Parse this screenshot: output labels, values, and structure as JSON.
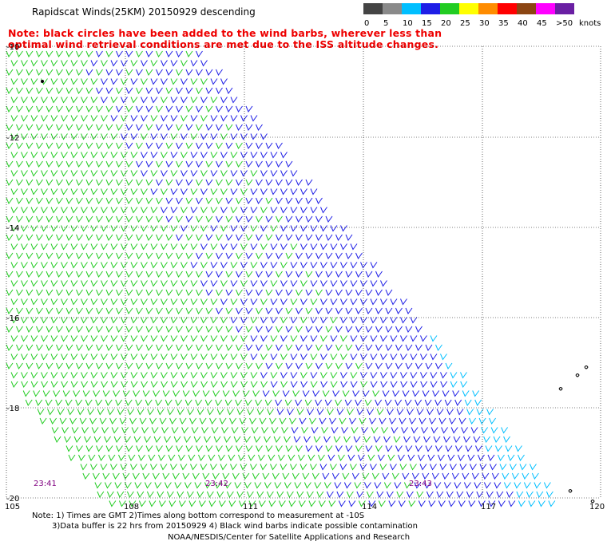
{
  "title": "Rapidscat Winds(25KM) 20150929 descending",
  "note": "Note: black circles have been added to the wind barbs, wherever less than optimal wind retrieval conditions are met due to the ISS altitude changes.",
  "legend": {
    "swatches": [
      {
        "label": "0",
        "color": "#444444"
      },
      {
        "label": "5",
        "color": "#8a8a8a"
      },
      {
        "label": "10",
        "color": "#00bfff"
      },
      {
        "label": "15",
        "color": "#1e1ee6"
      },
      {
        "label": "20",
        "color": "#22cc22"
      },
      {
        "label": "25",
        "color": "#ffff00"
      },
      {
        "label": "30",
        "color": "#ff8c00"
      },
      {
        "label": "35",
        "color": "#ff0000"
      },
      {
        "label": "40",
        "color": "#8b4513"
      },
      {
        "label": "45",
        "color": "#ff00ff"
      },
      {
        "label": ">50",
        "color": "#6a1fa3"
      }
    ],
    "unit": "knots"
  },
  "map": {
    "lat_labels": [
      "-10",
      "-12",
      "-14",
      "-16",
      "-18",
      "-20"
    ],
    "lon_labels": [
      "105",
      "108",
      "111",
      "114",
      "117",
      "120"
    ],
    "time_labels": [
      "23:41",
      "23:42",
      "23:43"
    ],
    "barb_colors": {
      "light": "#00bfff",
      "medium": "#1e1ee6",
      "strong": "#22cc22"
    }
  },
  "footer": {
    "line1": "Note: 1) Times are GMT 2)Times along bottom correspond to measurement at -10S",
    "line2": "3)Data buffer is 22 hrs from 20150929 4) Black wind barbs indicate possible contamination",
    "credit": "NOAA/NESDIS/Center for Satellite Applications and Research"
  }
}
